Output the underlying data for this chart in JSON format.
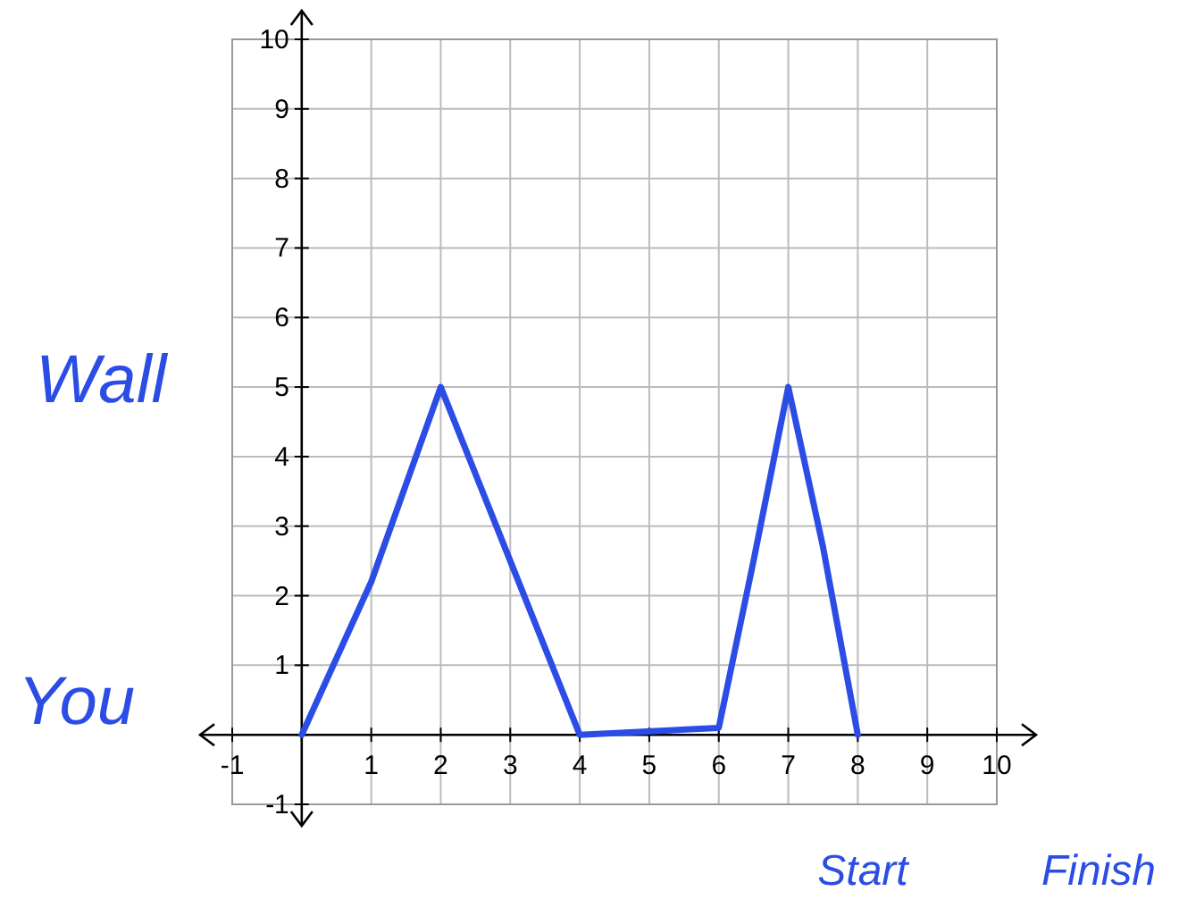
{
  "chart_data": {
    "type": "line",
    "x": [
      0,
      1,
      2,
      3,
      4,
      6,
      6.5,
      7,
      7.5,
      8
    ],
    "series": [
      {
        "color": "#2b4de6",
        "values": [
          0,
          2.2,
          5,
          2.5,
          0,
          0.1,
          2.5,
          5,
          2.7,
          0
        ]
      }
    ],
    "xlim": [
      -1,
      10
    ],
    "ylim": [
      -1,
      10
    ],
    "xticks": [
      -1,
      {
        "value": 0,
        "label": null
      },
      1,
      2,
      3,
      4,
      5,
      6,
      7,
      8,
      9,
      10
    ],
    "yticks": [
      -1,
      {
        "value": 0,
        "label": null
      },
      1,
      2,
      3,
      4,
      5,
      6,
      7,
      8,
      9,
      10
    ],
    "grid": true,
    "marker": "none",
    "line_style": "solid",
    "annotations": [
      "Wall",
      "You",
      "Start",
      "Finish"
    ]
  }
}
